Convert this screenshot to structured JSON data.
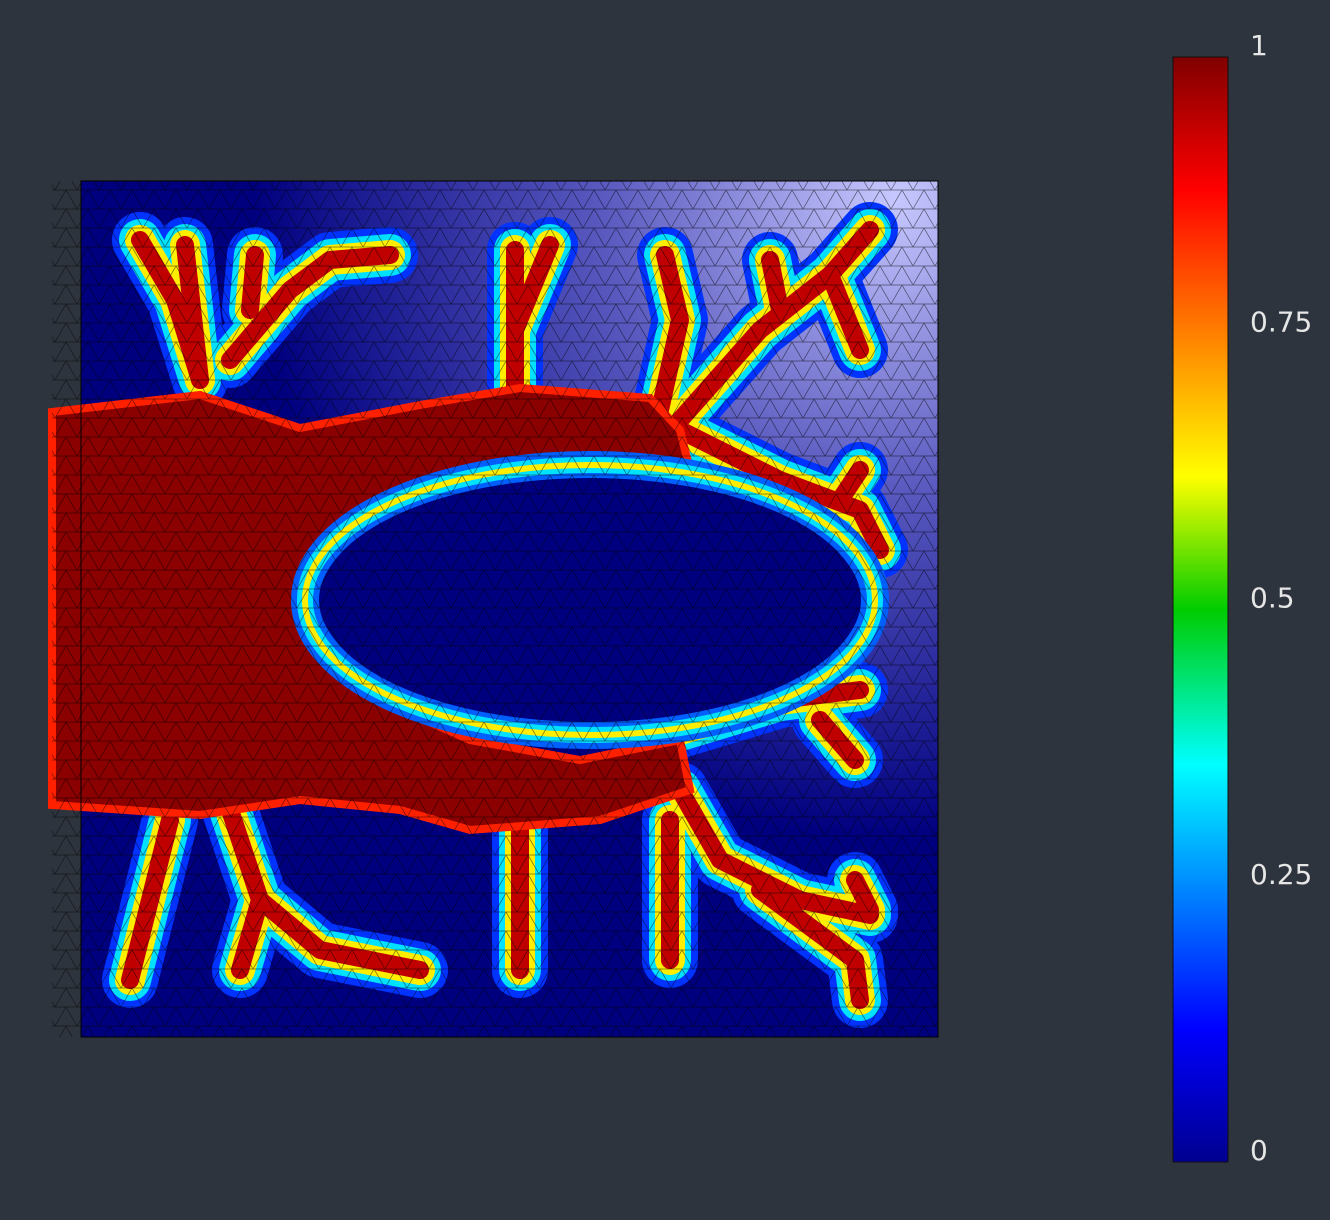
{
  "colorbar": {
    "range": [
      0,
      1
    ],
    "ticks": [
      0,
      0.25,
      0.5,
      0.75,
      1
    ]
  }
}
